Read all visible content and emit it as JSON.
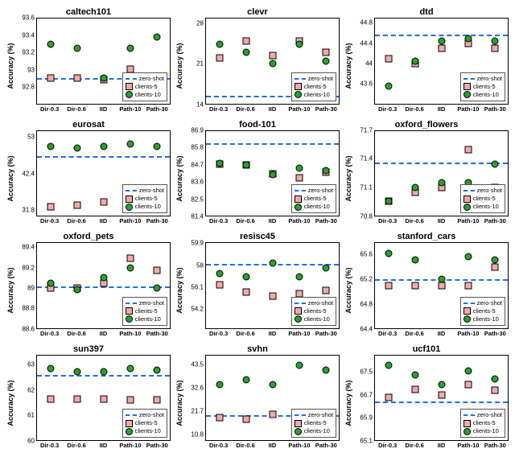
{
  "global": {
    "ylabel": "Accuracy (%)",
    "categories": [
      "Dir-0.3",
      "Dir-0.6",
      "IID",
      "Path-10",
      "Path-30"
    ],
    "legend": {
      "zero_shot": "zero-shot",
      "clients5": "clients-5",
      "clients10": "clients-10"
    },
    "colors": {
      "baseline": "#1f6fe5",
      "clients5": "#f4a9a9",
      "clients10": "#2ca02c",
      "border": "#000000",
      "label": "#000000"
    },
    "font": {
      "title_size": 11,
      "label_size": 9,
      "tick_size": 8
    }
  },
  "charts": [
    {
      "title": "caltech101",
      "ylim": [
        92.6,
        93.6
      ],
      "yticks": [
        92.8,
        93.0,
        93.2,
        93.4,
        93.6
      ],
      "baseline": 92.88,
      "clients5": [
        92.9,
        92.9,
        92.88,
        93.0,
        92.92
      ],
      "clients10": [
        93.3,
        93.25,
        92.9,
        93.25,
        93.38
      ],
      "legend_pos": "br"
    },
    {
      "title": "clevr",
      "ylim": [
        14,
        29
      ],
      "yticks": [
        14.0,
        21.0,
        28.0
      ],
      "baseline": 15.0,
      "clients5": [
        22.0,
        25.0,
        22.5,
        25.0,
        23.0
      ],
      "clients10": [
        24.5,
        23.0,
        21.0,
        24.5,
        21.5
      ],
      "legend_pos": "br"
    },
    {
      "title": "dtd",
      "ylim": [
        43.2,
        44.9
      ],
      "yticks": [
        43.6,
        44.0,
        44.4,
        44.8
      ],
      "baseline": 44.55,
      "clients5": [
        44.1,
        44.0,
        44.3,
        44.4,
        44.3
      ],
      "clients10": [
        43.55,
        44.05,
        44.45,
        44.5,
        44.45
      ],
      "legend_pos": "br"
    },
    {
      "title": "eurosat",
      "ylim": [
        30,
        55
      ],
      "yticks": [
        31.8,
        42.4,
        53.0
      ],
      "baseline": 47.0,
      "clients5": [
        32.5,
        33.0,
        34.0,
        33.0,
        32.5
      ],
      "clients10": [
        50.5,
        50.0,
        50.5,
        51.0,
        50.5
      ],
      "legend_pos": "br"
    },
    {
      "title": "food-101",
      "ylim": [
        81.4,
        86.9
      ],
      "yticks": [
        81.4,
        82.5,
        83.6,
        84.7,
        85.8,
        86.9
      ],
      "baseline": 86.0,
      "clients5": [
        84.75,
        84.7,
        84.1,
        83.85,
        84.2
      ],
      "clients10": [
        84.8,
        84.7,
        84.05,
        84.5,
        84.3
      ],
      "legend_pos": "br"
    },
    {
      "title": "oxford_flowers",
      "ylim": [
        70.8,
        71.7
      ],
      "yticks": [
        70.8,
        71.1,
        71.4,
        71.7
      ],
      "baseline": 71.35,
      "clients5": [
        70.95,
        71.05,
        71.1,
        71.5,
        71.1
      ],
      "clients10": [
        70.95,
        71.1,
        71.15,
        71.15,
        71.35
      ],
      "legend_pos": "br"
    },
    {
      "title": "oxford_pets",
      "ylim": [
        88.6,
        89.45
      ],
      "yticks": [
        88.6,
        88.8,
        89.0,
        89.2,
        89.4
      ],
      "baseline": 89.0,
      "clients5": [
        89.0,
        89.0,
        89.05,
        89.3,
        89.18
      ],
      "clients10": [
        89.05,
        88.98,
        89.1,
        89.2,
        89.0
      ],
      "legend_pos": "br"
    },
    {
      "title": "resisc45",
      "ylim": [
        52.5,
        60
      ],
      "yticks": [
        54.2,
        56.1,
        58.0,
        59.9
      ],
      "baseline": 58.0,
      "clients5": [
        56.3,
        55.7,
        55.3,
        55.5,
        55.8
      ],
      "clients10": [
        57.3,
        57.0,
        58.2,
        57.0,
        57.8
      ],
      "legend_pos": "br"
    },
    {
      "title": "stanford_cars",
      "ylim": [
        64.4,
        65.8
      ],
      "yticks": [
        64.4,
        64.8,
        65.2,
        65.6
      ],
      "baseline": 65.18,
      "clients5": [
        65.1,
        65.1,
        65.1,
        65.1,
        65.4
      ],
      "clients10": [
        65.63,
        65.52,
        65.2,
        65.58,
        65.52
      ],
      "legend_pos": "br"
    },
    {
      "title": "sun397",
      "ylim": [
        60.0,
        63.4
      ],
      "yticks": [
        60.0,
        61.0,
        62.0,
        63.0
      ],
      "baseline": 62.55,
      "clients5": [
        61.65,
        61.65,
        61.65,
        61.6,
        61.6
      ],
      "clients10": [
        62.88,
        62.75,
        62.75,
        62.88,
        62.8
      ],
      "legend_pos": "br"
    },
    {
      "title": "svhn",
      "ylim": [
        8,
        48
      ],
      "yticks": [
        10.8,
        21.7,
        32.6,
        43.5
      ],
      "baseline": 19.0,
      "clients5": [
        18.8,
        18.0,
        20.0,
        19.0,
        18.5
      ],
      "clients10": [
        34.0,
        36.5,
        34.0,
        43.3,
        41.0
      ],
      "legend_pos": "br"
    },
    {
      "title": "ucf101",
      "ylim": [
        65.1,
        68.1
      ],
      "yticks": [
        65.1,
        65.9,
        66.7,
        67.5
      ],
      "baseline": 66.4,
      "clients5": [
        66.6,
        66.9,
        66.7,
        67.05,
        66.85
      ],
      "clients10": [
        67.75,
        67.4,
        67.05,
        67.55,
        67.25
      ],
      "legend_pos": "br"
    }
  ]
}
